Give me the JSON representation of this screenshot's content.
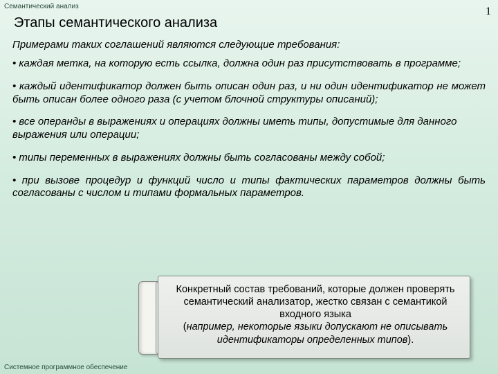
{
  "header": "Семантический анализ",
  "footer": "Системное программное обеспечение",
  "page_number": "1",
  "title": "Этапы семантического анализа",
  "intro": "Примерами таких соглашений являются следующие требования:",
  "bullets": [
    {
      "text": "каждая метка, на которую есть ссылка, должна один раз присутствовать в программе;",
      "justify": false
    },
    {
      "text": "каждый идентификатор должен быть описан один раз, и ни один идентификатор не может быть описан более одного раза (с учетом блочной структуры описаний);",
      "justify": true
    },
    {
      "text": "все операнды в выражениях и операциях должны иметь типы, допустимые для данного выражения или операции;",
      "justify": false
    },
    {
      "text": "типы переменных в выражениях должны быть согласованы между собой;",
      "justify": false
    },
    {
      "text": "при вызове процедур и функций число и типы фактических параметров должны быть согласованы с числом и типами формальных параметров.",
      "justify": true
    }
  ],
  "callout": {
    "line1": "Конкретный состав требований, которые должен проверять семантический анализатор, жестко связан с семантикой входного языка",
    "note_prefix": "(",
    "note": "например, некоторые языки допускают не описывать идентификаторы определенных типов",
    "note_suffix": ")."
  },
  "colors": {
    "bg_top": "#e8f5ee",
    "bg_bottom": "#c6e4d4",
    "callout_bg": "#eef0ee",
    "callout_border": "#7a8a7a"
  }
}
